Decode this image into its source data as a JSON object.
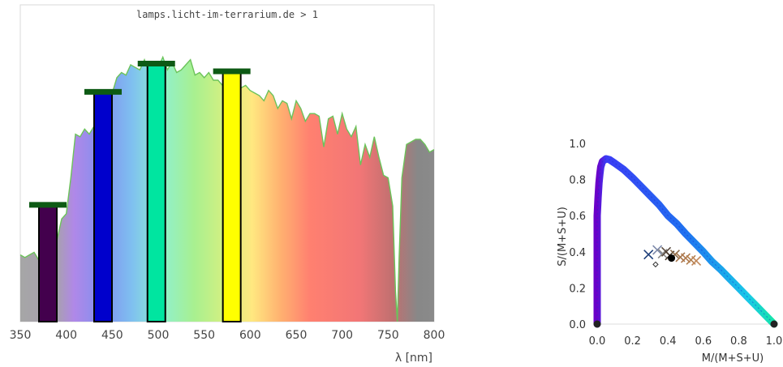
{
  "chart_data": [
    {
      "type": "area",
      "title": "lamps.licht-im-terrarium.de > 1",
      "xlabel": "λ [nm]",
      "ylabel": "",
      "xlim": [
        350,
        800
      ],
      "ylim": [
        0,
        1
      ],
      "x_ticks": [
        "350",
        "400",
        "450",
        "500",
        "550",
        "600",
        "650",
        "700",
        "750",
        "800"
      ],
      "spectrum": {
        "x": [
          350,
          355,
          360,
          365,
          370,
          375,
          380,
          385,
          390,
          395,
          400,
          405,
          410,
          415,
          420,
          425,
          430,
          435,
          440,
          445,
          450,
          455,
          460,
          465,
          470,
          475,
          480,
          485,
          490,
          495,
          500,
          505,
          510,
          515,
          520,
          525,
          530,
          535,
          540,
          545,
          550,
          555,
          560,
          565,
          570,
          575,
          580,
          585,
          590,
          595,
          600,
          605,
          610,
          615,
          620,
          625,
          630,
          635,
          640,
          645,
          650,
          655,
          660,
          665,
          670,
          675,
          680,
          685,
          690,
          695,
          700,
          705,
          710,
          715,
          720,
          725,
          730,
          735,
          740,
          745,
          750,
          755,
          758,
          760,
          762,
          765,
          770,
          775,
          780,
          785,
          790,
          795,
          800
        ],
        "y": [
          0.26,
          0.25,
          0.26,
          0.27,
          0.24,
          0.27,
          0.31,
          0.36,
          0.32,
          0.4,
          0.42,
          0.56,
          0.73,
          0.72,
          0.75,
          0.73,
          0.76,
          0.79,
          0.82,
          0.86,
          0.89,
          0.95,
          0.97,
          0.96,
          1.0,
          0.99,
          0.98,
          1.02,
          0.97,
          1.0,
          0.99,
          1.03,
          0.98,
          1.01,
          0.97,
          0.98,
          1.0,
          1.02,
          0.96,
          0.97,
          0.95,
          0.97,
          0.94,
          0.94,
          0.92,
          0.95,
          0.9,
          0.93,
          0.91,
          0.92,
          0.9,
          0.89,
          0.88,
          0.86,
          0.9,
          0.88,
          0.83,
          0.86,
          0.85,
          0.79,
          0.86,
          0.83,
          0.78,
          0.81,
          0.81,
          0.8,
          0.68,
          0.79,
          0.8,
          0.73,
          0.81,
          0.75,
          0.72,
          0.76,
          0.61,
          0.69,
          0.64,
          0.72,
          0.64,
          0.57,
          0.56,
          0.45,
          0.12,
          0.0,
          0.25,
          0.56,
          0.69,
          0.7,
          0.71,
          0.71,
          0.69,
          0.66,
          0.67
        ]
      },
      "receptor_bars": [
        {
          "peak_nm": 380,
          "value": 0.45,
          "color": "#43004d"
        },
        {
          "peak_nm": 440,
          "value": 0.89,
          "color": "#0000cc"
        },
        {
          "peak_nm": 498,
          "value": 1.0,
          "color": "#00e5a0"
        },
        {
          "peak_nm": 580,
          "value": 0.97,
          "color": "#ffff00"
        }
      ]
    },
    {
      "type": "scatter",
      "title": "",
      "xlabel": "M/(M+S+U)",
      "ylabel": "S/(M+S+U)",
      "xlim": [
        0,
        1
      ],
      "ylim": [
        0,
        1
      ],
      "x_ticks": [
        "0.0",
        "0.2",
        "0.4",
        "0.6",
        "0.8",
        "1.0"
      ],
      "y_ticks": [
        "0.0",
        "0.2",
        "0.4",
        "0.6",
        "0.8",
        "1.0"
      ],
      "locus": {
        "x": [
          0.0,
          0.0,
          0.0,
          0.0,
          0.0,
          0.0,
          0.0,
          0.005,
          0.01,
          0.015,
          0.02,
          0.03,
          0.05,
          0.07,
          0.1,
          0.15,
          0.2,
          0.25,
          0.3,
          0.35,
          0.4,
          0.45,
          0.5,
          0.55,
          0.6,
          0.65,
          0.7,
          0.75,
          0.8,
          0.85,
          0.9,
          0.95,
          1.0
        ],
        "y": [
          0.0,
          0.1,
          0.2,
          0.3,
          0.4,
          0.5,
          0.6,
          0.7,
          0.78,
          0.83,
          0.87,
          0.9,
          0.915,
          0.91,
          0.89,
          0.855,
          0.81,
          0.76,
          0.71,
          0.66,
          0.6,
          0.555,
          0.5,
          0.45,
          0.4,
          0.345,
          0.3,
          0.25,
          0.2,
          0.15,
          0.1,
          0.05,
          0.0
        ]
      },
      "markers": [
        {
          "x": 0.29,
          "y": 0.385,
          "symbol": "x",
          "color": "#1f3f7a"
        },
        {
          "x": 0.34,
          "y": 0.41,
          "symbol": "x",
          "color": "#7d89aa"
        },
        {
          "x": 0.37,
          "y": 0.39,
          "symbol": "x",
          "color": "#8b8b8b"
        },
        {
          "x": 0.39,
          "y": 0.4,
          "symbol": "x",
          "color": "#5a4a3e"
        },
        {
          "x": 0.41,
          "y": 0.38,
          "symbol": "x",
          "color": "#4a3a2e"
        },
        {
          "x": 0.44,
          "y": 0.385,
          "symbol": "x",
          "color": "#8a6a4a"
        },
        {
          "x": 0.47,
          "y": 0.37,
          "symbol": "x",
          "color": "#a5744a"
        },
        {
          "x": 0.5,
          "y": 0.365,
          "symbol": "x",
          "color": "#b07a4e"
        },
        {
          "x": 0.53,
          "y": 0.355,
          "symbol": "x",
          "color": "#b3804f"
        },
        {
          "x": 0.56,
          "y": 0.35,
          "symbol": "x",
          "color": "#c0875a"
        },
        {
          "x": 0.33,
          "y": 0.33,
          "symbol": "diamond",
          "color": "#333333"
        },
        {
          "x": 0.42,
          "y": 0.365,
          "symbol": "circle",
          "color": "#000000"
        },
        {
          "x": 0.0,
          "y": 0.0,
          "symbol": "circle",
          "color": "#222222"
        },
        {
          "x": 1.0,
          "y": 0.0,
          "symbol": "circle",
          "color": "#222222"
        }
      ]
    }
  ]
}
